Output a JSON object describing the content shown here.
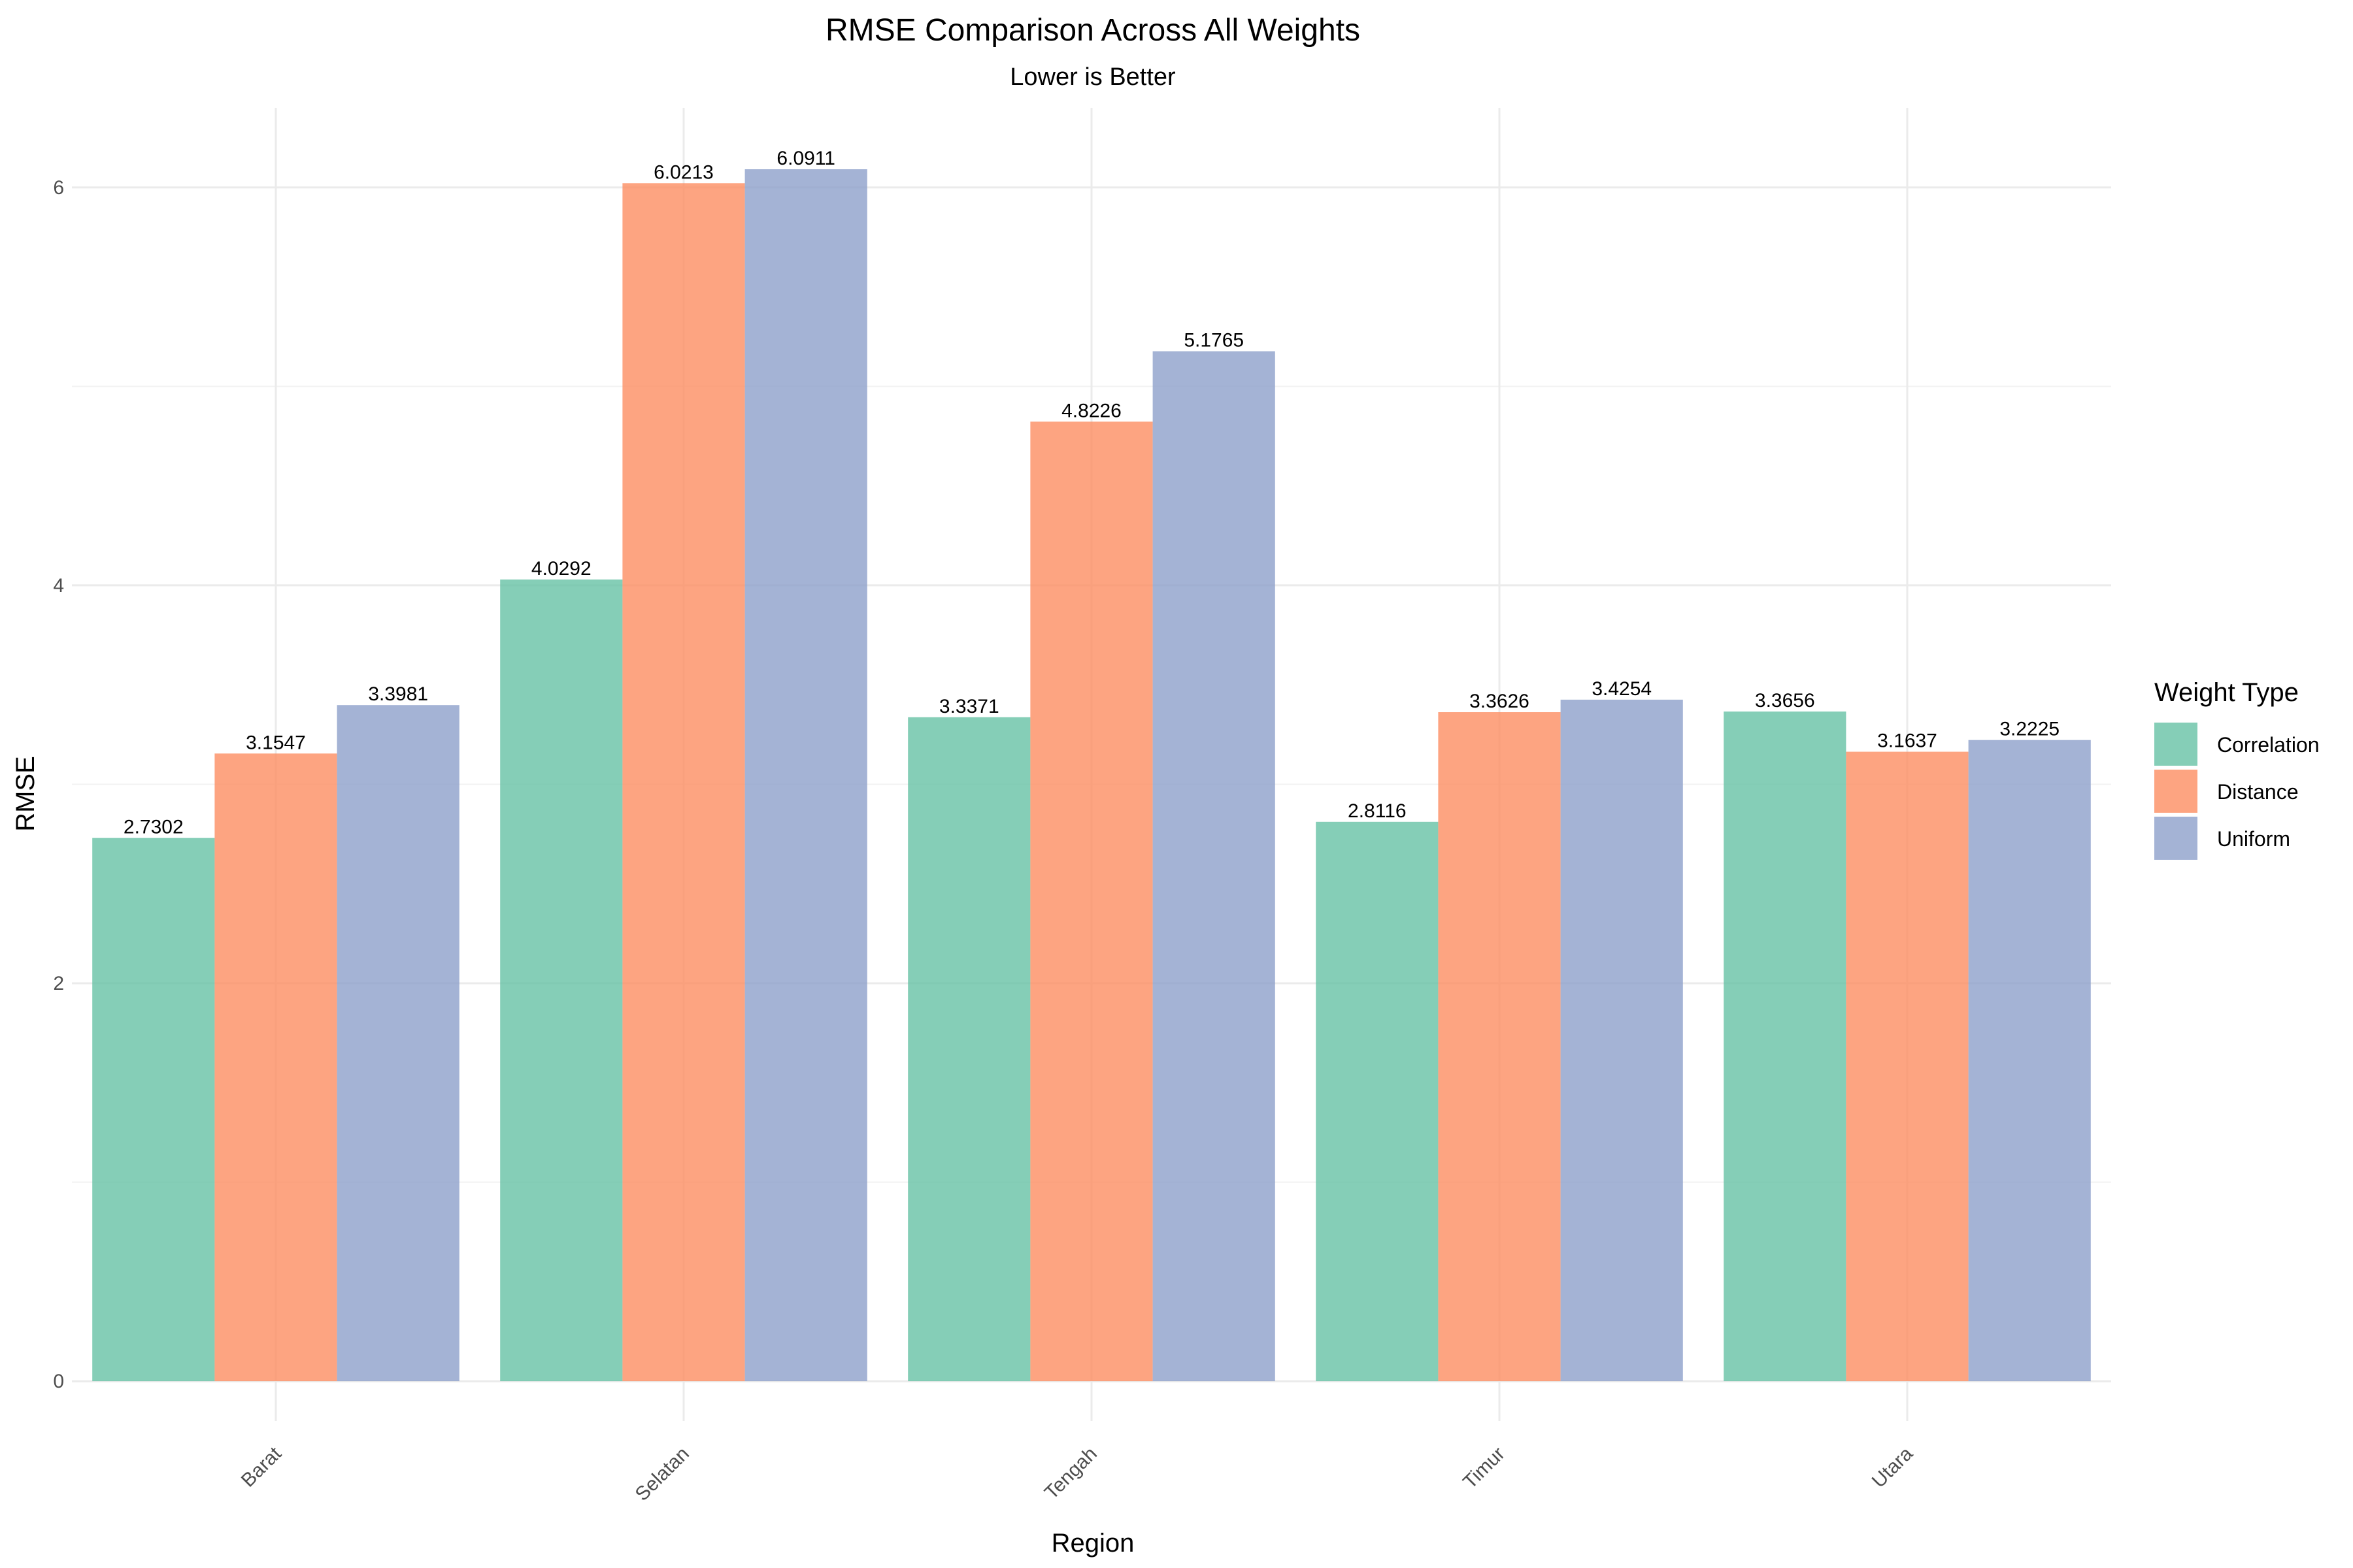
{
  "chart_data": {
    "type": "bar",
    "title": "RMSE Comparison Across All Weights",
    "subtitle": "Lower is Better",
    "xlabel": "Region",
    "ylabel": "RMSE",
    "categories": [
      "Barat",
      "Selatan",
      "Tengah",
      "Timur",
      "Utara"
    ],
    "series": [
      {
        "name": "Correlation",
        "color": "#66c2a5",
        "values": [
          2.7302,
          4.0292,
          3.3371,
          2.8116,
          3.3656
        ],
        "labels": [
          "2.7302",
          "4.0292",
          "3.3371",
          "2.8116",
          "3.3656"
        ]
      },
      {
        "name": "Distance",
        "color": "#fc8d62",
        "values": [
          3.1547,
          6.0213,
          4.8226,
          3.3626,
          3.1637
        ],
        "labels": [
          "3.1547",
          "6.0213",
          "4.8226",
          "3.3626",
          "3.1637"
        ]
      },
      {
        "name": "Uniform",
        "color": "#8da0cb",
        "values": [
          3.3981,
          6.0911,
          5.1765,
          3.4254,
          3.2225
        ],
        "labels": [
          "3.3981",
          "6.0911",
          "5.1765",
          "3.4254",
          "3.2225"
        ]
      }
    ],
    "yticks": [
      0,
      2,
      4,
      6
    ],
    "ylim": [
      -0.2,
      6.4
    ],
    "legend_title": "Weight Type",
    "legend_position": "right",
    "grid": true,
    "x_tick_rotation_deg": -45
  }
}
